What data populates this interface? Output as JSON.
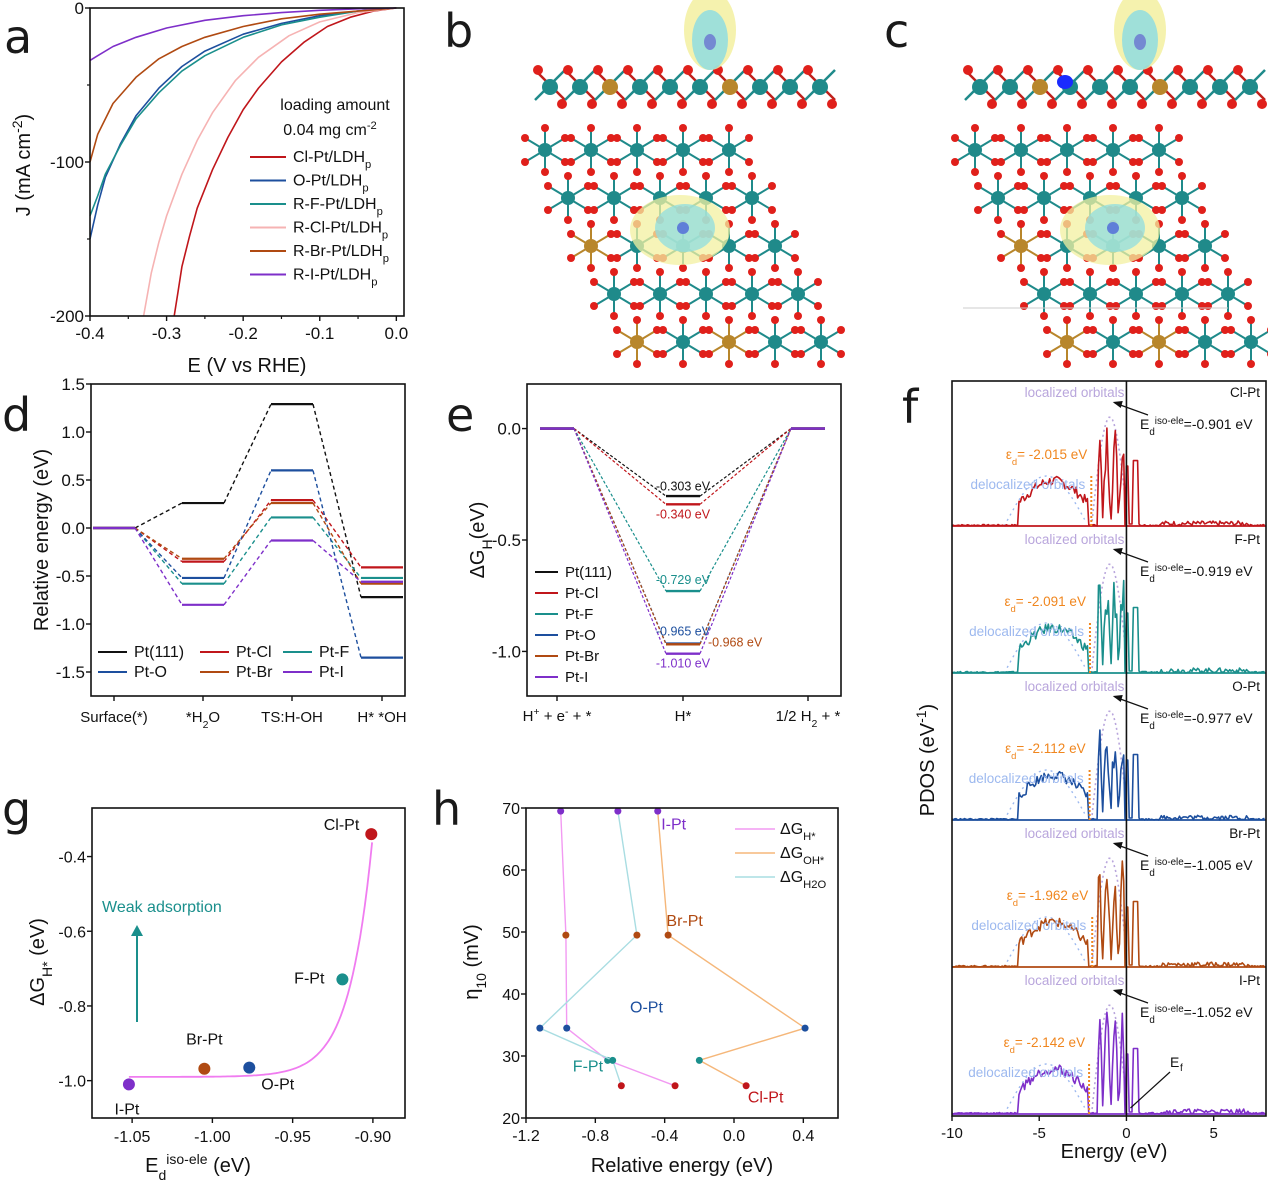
{
  "panels": {
    "a": "a",
    "b": "b",
    "c": "c",
    "d": "d",
    "e": "e",
    "f": "f",
    "g": "g",
    "h": "h"
  },
  "structures": {
    "b": {
      "description": "Charge density difference, side and top view of Cl-Pt on LDH",
      "atom_colors": {
        "metal_teal": "#1f8a8a",
        "metal_gold": "#b8862b",
        "oxygen": "#e0201b",
        "isosurface_yellow": "#f3f0a0",
        "isosurface_cyan": "#8fdde0"
      }
    },
    "c": {
      "description": "Charge density difference, side and top view of O-Pt on LDH",
      "atom_colors": {
        "metal_teal": "#1f8a8a",
        "metal_gold": "#b8862b",
        "oxygen": "#e0201b",
        "isosurface_yellow": "#f3f0a0",
        "isosurface_cyan": "#8fdde0",
        "highlight_blue": "#1a2bff"
      }
    }
  },
  "chart_data": [
    {
      "id": "a",
      "type": "line",
      "title": "",
      "xlabel": "E (V vs RHE)",
      "ylabel": "J (mA cm-2)",
      "xlim": [
        -0.4,
        0.01
      ],
      "ylim": [
        -200,
        0
      ],
      "xticks": [
        -0.4,
        -0.3,
        -0.2,
        -0.1,
        0.0
      ],
      "xtick_labels": [
        "-0.4",
        "-0.3",
        "-0.2",
        "-0.1",
        "0.0"
      ],
      "yticks": [
        0,
        -100,
        -200
      ],
      "ytick_labels": [
        "0",
        "-100",
        "-200"
      ],
      "annotation": {
        "line1": "loading amount",
        "line2": "0.04 mg cm",
        "sup": "-2"
      },
      "legend_position": "right",
      "series": [
        {
          "name": "Cl-Pt/LDH",
          "sub": "p",
          "color": "#c0161b",
          "width": 1.6,
          "x": [
            0.0,
            -0.03,
            -0.06,
            -0.09,
            -0.12,
            -0.15,
            -0.18,
            -0.2,
            -0.22,
            -0.24,
            -0.26,
            -0.27,
            -0.28,
            -0.285,
            -0.29
          ],
          "y": [
            0,
            -2,
            -6,
            -12,
            -22,
            -35,
            -52,
            -66,
            -84,
            -105,
            -130,
            -148,
            -168,
            -184,
            -200
          ]
        },
        {
          "name": "O-Pt/LDH",
          "sub": "p",
          "color": "#1d4f9e",
          "width": 1.6,
          "x": [
            0.0,
            -0.05,
            -0.1,
            -0.15,
            -0.2,
            -0.25,
            -0.28,
            -0.31,
            -0.34,
            -0.36,
            -0.38,
            -0.39,
            -0.4
          ],
          "y": [
            0,
            -2,
            -5,
            -10,
            -17,
            -28,
            -38,
            -52,
            -70,
            -88,
            -110,
            -128,
            -150
          ]
        },
        {
          "name": "R-F-Pt/LDH",
          "sub": "p",
          "color": "#1a8f8c",
          "width": 1.6,
          "x": [
            0.0,
            -0.05,
            -0.1,
            -0.15,
            -0.2,
            -0.25,
            -0.28,
            -0.31,
            -0.34,
            -0.36,
            -0.38,
            -0.39,
            -0.4
          ],
          "y": [
            0,
            -2,
            -6,
            -11,
            -19,
            -31,
            -41,
            -55,
            -72,
            -89,
            -108,
            -122,
            -135
          ]
        },
        {
          "name": "R-Cl-Pt/LDH",
          "sub": "p",
          "color": "#f6b3b3",
          "width": 1.6,
          "x": [
            0.0,
            -0.05,
            -0.1,
            -0.14,
            -0.18,
            -0.21,
            -0.24,
            -0.26,
            -0.28,
            -0.3,
            -0.31,
            -0.32,
            -0.33
          ],
          "y": [
            0,
            -3,
            -9,
            -18,
            -32,
            -47,
            -68,
            -86,
            -108,
            -135,
            -152,
            -172,
            -200
          ]
        },
        {
          "name": "R-Br-Pt/LDH",
          "sub": "p",
          "color": "#b04a12",
          "width": 1.6,
          "x": [
            0.0,
            -0.05,
            -0.1,
            -0.15,
            -0.2,
            -0.25,
            -0.28,
            -0.31,
            -0.34,
            -0.37,
            -0.39,
            -0.4
          ],
          "y": [
            0,
            -2,
            -4,
            -7,
            -12,
            -19,
            -25,
            -33,
            -45,
            -62,
            -82,
            -100
          ]
        },
        {
          "name": "R-I-Pt/LDH",
          "sub": "p",
          "color": "#7e2fc9",
          "width": 1.6,
          "x": [
            0.0,
            -0.05,
            -0.1,
            -0.15,
            -0.2,
            -0.25,
            -0.3,
            -0.34,
            -0.37,
            -0.39,
            -0.4
          ],
          "y": [
            0,
            -0.5,
            -1.5,
            -3,
            -5,
            -8,
            -13,
            -19,
            -25,
            -31,
            -34
          ]
        }
      ]
    },
    {
      "id": "d",
      "type": "line",
      "subtype": "energy-profile",
      "xlabel": "",
      "ylabel": "Relative energy (eV)",
      "ylim": [
        -1.75,
        1.5
      ],
      "yticks": [
        1.5,
        1.0,
        0.5,
        0.0,
        -0.5,
        -1.0,
        -1.5
      ],
      "ytick_labels": [
        "1.5",
        "1.0",
        "0.5",
        "0.0",
        "-0.5",
        "-1.0",
        "-1.5"
      ],
      "categories": [
        "Surface(*)",
        "*H2O",
        "TS:H-OH",
        "H* *OH"
      ],
      "category_labels": [
        {
          "main": "Surface(*)"
        },
        {
          "main": "*H",
          "sub": "2",
          "tail": "O"
        },
        {
          "main": "TS:H-OH"
        },
        {
          "main": "H* *OH"
        }
      ],
      "legend_position": "bottom-left",
      "series": [
        {
          "name": "Pt(111)",
          "color": "#111111",
          "values": [
            0.0,
            0.26,
            1.29,
            -0.72
          ]
        },
        {
          "name": "Pt-Cl",
          "color": "#c0161b",
          "values": [
            0.0,
            -0.35,
            0.29,
            -0.41
          ]
        },
        {
          "name": "Pt-F",
          "color": "#1a8f8c",
          "values": [
            0.0,
            -0.58,
            0.11,
            -0.52
          ]
        },
        {
          "name": "Pt-O",
          "color": "#1d4f9e",
          "values": [
            0.0,
            -0.52,
            0.6,
            -1.35
          ]
        },
        {
          "name": "Pt-Br",
          "color": "#b04a12",
          "values": [
            0.0,
            -0.32,
            0.26,
            -0.58
          ]
        },
        {
          "name": "Pt-I",
          "color": "#7e2fc9",
          "values": [
            0.0,
            -0.8,
            -0.13,
            -0.56
          ]
        }
      ]
    },
    {
      "id": "e",
      "type": "line",
      "subtype": "free-energy-diagram",
      "ylabel": "ΔGH(eV)",
      "ylim": [
        -1.2,
        0.2
      ],
      "yticks": [
        0.0,
        -0.5,
        -1.0
      ],
      "ytick_labels": [
        "0.0",
        "-0.5",
        "-1.0"
      ],
      "categories": [
        "H+ + e- + *",
        "H*",
        "1/2 H2 + *"
      ],
      "legend_position": "left",
      "series": [
        {
          "name": "Pt(111)",
          "color": "#111111",
          "values": [
            0.0,
            -0.303,
            0.0
          ],
          "label": "-0.303 eV"
        },
        {
          "name": "Pt-Cl",
          "color": "#c0161b",
          "values": [
            0.0,
            -0.34,
            0.0
          ],
          "label": "-0.340 eV"
        },
        {
          "name": "Pt-F",
          "color": "#1a8f8c",
          "values": [
            0.0,
            -0.729,
            0.0
          ],
          "label": "-0.729 eV"
        },
        {
          "name": "Pt-O",
          "color": "#1d4f9e",
          "values": [
            0.0,
            -0.965,
            0.0
          ],
          "label": "-0.965 eV"
        },
        {
          "name": "Pt-Br",
          "color": "#b04a12",
          "values": [
            0.0,
            -0.968,
            0.0
          ],
          "label": "-0.968 eV"
        },
        {
          "name": "Pt-I",
          "color": "#7e2fc9",
          "values": [
            0.0,
            -1.01,
            0.0
          ],
          "label": "-1.010 eV"
        }
      ]
    },
    {
      "id": "f",
      "type": "line",
      "subtype": "stacked-pdos",
      "xlabel": "Energy (eV)",
      "ylabel": "PDOS (eV-1)",
      "xlim": [
        -10,
        8
      ],
      "xticks": [
        -10,
        -5,
        0,
        5
      ],
      "xtick_labels": [
        "-10",
        "-5",
        "0",
        "5"
      ],
      "fermi_label": "Ef",
      "localized_label": "localized orbitals",
      "delocalized_label": "delocalized orbitals",
      "localized_color": "#b9a6dc",
      "delocalized_color": "#9db9ef",
      "ed_color": "#f0861e",
      "panels": [
        {
          "name": "Cl-Pt",
          "color": "#c0161b",
          "ed": -2.015,
          "ed_label": "= -2.015 eV",
          "eiso": -0.901,
          "eiso_label": "=-0.901 eV"
        },
        {
          "name": "F-Pt",
          "color": "#1a8f8c",
          "ed": -2.091,
          "ed_label": "= -2.091 eV",
          "eiso": -0.919,
          "eiso_label": "=-0.919 eV"
        },
        {
          "name": "O-Pt",
          "color": "#1d4f9e",
          "ed": -2.112,
          "ed_label": "= -2.112 eV",
          "eiso": -0.977,
          "eiso_label": "=-0.977 eV"
        },
        {
          "name": "Br-Pt",
          "color": "#b04a12",
          "ed": -1.962,
          "ed_label": "= -1.962 eV",
          "eiso": -1.005,
          "eiso_label": "=-1.005 eV"
        },
        {
          "name": "I-Pt",
          "color": "#7e2fc9",
          "ed": -2.142,
          "ed_label": "= -2.142 eV",
          "eiso": -1.052,
          "eiso_label": "=-1.052 eV"
        }
      ]
    },
    {
      "id": "g",
      "type": "scatter",
      "xlabel": "Ed iso-ele (eV)",
      "ylabel": "ΔGH* (eV)",
      "xlim": [
        -1.075,
        -0.88
      ],
      "ylim": [
        -1.1,
        -0.27
      ],
      "xticks": [
        -1.05,
        -1.0,
        -0.95,
        -0.9
      ],
      "xtick_labels": [
        "-1.05",
        "-1.00",
        "-0.95",
        "-0.90"
      ],
      "yticks": [
        -0.4,
        -0.6,
        -0.8,
        -1.0
      ],
      "ytick_labels": [
        "-0.4",
        "-0.6",
        "-0.8",
        "-1.0"
      ],
      "annotation": "Weak adsorption",
      "annotation_color": "#1a8f8c",
      "fit_color": "#f07cf0",
      "points": [
        {
          "name": "Cl-Pt",
          "x": -0.901,
          "y": -0.34,
          "color": "#c0161b"
        },
        {
          "name": "F-Pt",
          "x": -0.919,
          "y": -0.729,
          "color": "#1a8f8c"
        },
        {
          "name": "O-Pt",
          "x": -0.977,
          "y": -0.965,
          "color": "#1d4f9e"
        },
        {
          "name": "Br-Pt",
          "x": -1.005,
          "y": -0.968,
          "color": "#b04a12"
        },
        {
          "name": "I-Pt",
          "x": -1.052,
          "y": -1.01,
          "color": "#7e2fc9"
        }
      ]
    },
    {
      "id": "h",
      "type": "line",
      "xlabel": "Relative energy (eV)",
      "ylabel": "η10 (mV)",
      "xlim": [
        -1.2,
        0.6
      ],
      "ylim": [
        20,
        70
      ],
      "xticks": [
        -1.2,
        -0.8,
        -0.4,
        0.0,
        0.4
      ],
      "xtick_labels": [
        "-1.2",
        "-0.8",
        "-0.4",
        "0.0",
        "0.4"
      ],
      "yticks": [
        20,
        30,
        40,
        50,
        60,
        70
      ],
      "ytick_labels": [
        "20",
        "30",
        "40",
        "50",
        "60",
        "70"
      ],
      "legend_position": "top-right",
      "categories": [
        "I-Pt",
        "Br-Pt",
        "O-Pt",
        "F-Pt",
        "Cl-Pt"
      ],
      "category_eta": [
        69.5,
        49.5,
        34.5,
        29.3,
        25.2
      ],
      "category_colors": [
        "#7e2fc9",
        "#b04a12",
        "#1d4f9e",
        "#1a8f8c",
        "#c0161b"
      ],
      "series": [
        {
          "name": "ΔGH*",
          "sub": "H*",
          "color": "#f29af2",
          "x": [
            -1.0,
            -0.97,
            -0.965,
            -0.729,
            -0.34
          ]
        },
        {
          "name": "ΔGOH*",
          "sub": "OH*",
          "color": "#f5b77a",
          "x": [
            -0.44,
            -0.38,
            0.41,
            -0.2,
            0.07
          ]
        },
        {
          "name": "ΔGH2O",
          "sub": "H2O",
          "color": "#a9dde2",
          "x": [
            -0.67,
            -0.56,
            -1.12,
            -0.7,
            -0.65
          ]
        }
      ]
    }
  ]
}
